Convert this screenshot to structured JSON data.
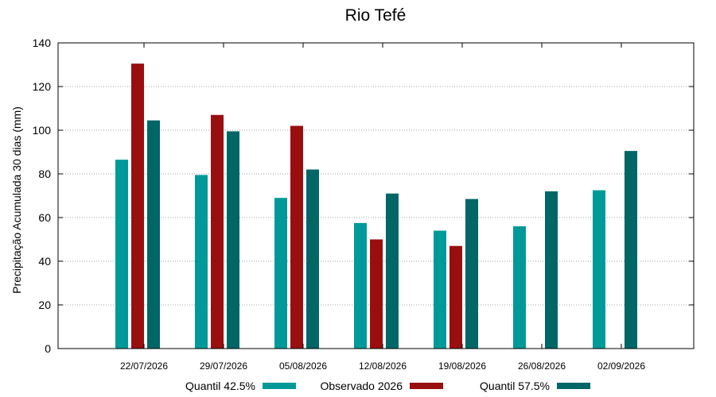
{
  "chart_data": {
    "type": "bar",
    "title": "Rio Tefé",
    "xlabel": "",
    "ylabel": "Precipitação Acumulada 30 dias (mm)",
    "ylim": [
      0,
      140
    ],
    "yticks": [
      0,
      20,
      40,
      60,
      80,
      100,
      120,
      140
    ],
    "grid": true,
    "legend_position": "bottom",
    "categories": [
      "22/07/2026",
      "29/07/2026",
      "05/08/2026",
      "12/08/2026",
      "19/08/2026",
      "26/08/2026",
      "02/09/2026"
    ],
    "series": [
      {
        "name": "Quantil 42.5%",
        "color": "#009999",
        "values": [
          86.5,
          79.5,
          69,
          57.5,
          54,
          56,
          72.5
        ]
      },
      {
        "name": "Observado 2026",
        "color": "#990f0f",
        "values": [
          130.5,
          107,
          102,
          50,
          47,
          null,
          null
        ]
      },
      {
        "name": "Quantil 57.5%",
        "color": "#006666",
        "values": [
          104.5,
          99.5,
          82,
          71,
          68.5,
          72,
          90.5
        ]
      }
    ]
  }
}
